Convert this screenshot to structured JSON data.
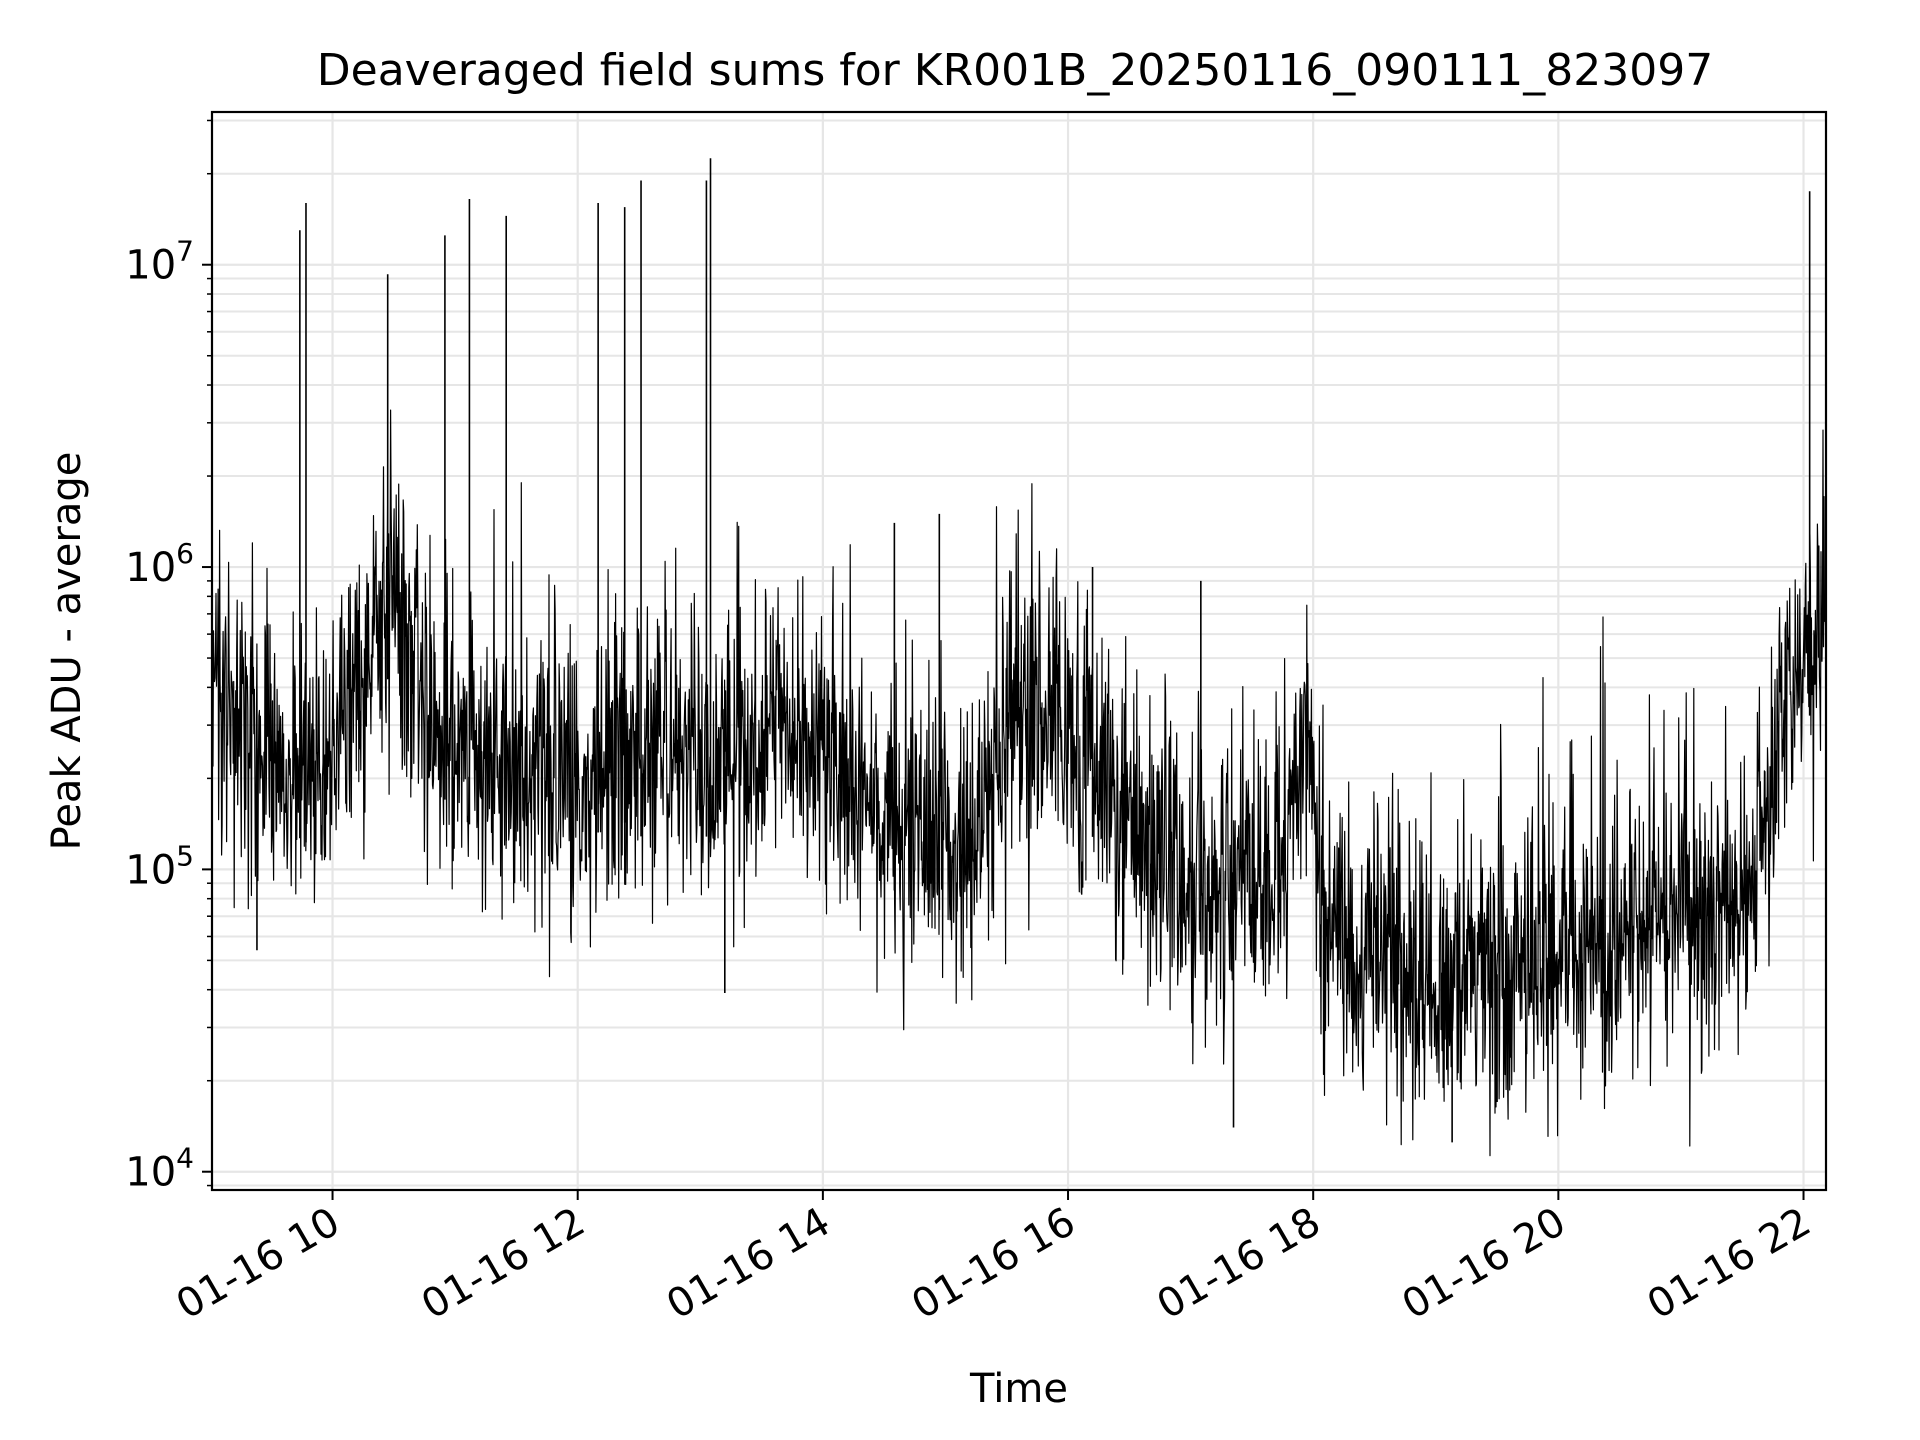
{
  "chart_data": {
    "type": "line",
    "title": "Deaveraged field sums for KR001B_20250116_090111_823097",
    "xlabel": "Time",
    "ylabel": "Peak ADU - average",
    "yscale": "log",
    "ylim": [
      8700,
      32000000
    ],
    "xlim": [
      "2025-01-16 09:01",
      "2025-01-16 22:11"
    ],
    "grid": true,
    "legend": "none",
    "line_color": "#000000",
    "grid_color": "#e6e6e6",
    "x_ticks": [
      {
        "t": "2025-01-16 10:00",
        "label": "01-16 10"
      },
      {
        "t": "2025-01-16 12:00",
        "label": "01-16 12"
      },
      {
        "t": "2025-01-16 14:00",
        "label": "01-16 14"
      },
      {
        "t": "2025-01-16 16:00",
        "label": "01-16 16"
      },
      {
        "t": "2025-01-16 18:00",
        "label": "01-16 18"
      },
      {
        "t": "2025-01-16 20:00",
        "label": "01-16 20"
      },
      {
        "t": "2025-01-16 22:00",
        "label": "01-16 22"
      }
    ],
    "y_ticks": [
      {
        "value": 10000,
        "base": "10",
        "exp": "4"
      },
      {
        "value": 100000,
        "base": "10",
        "exp": "5"
      },
      {
        "value": 1000000,
        "base": "10",
        "exp": "6"
      },
      {
        "value": 10000000,
        "base": "10",
        "exp": "7"
      }
    ],
    "baseline_hours": [
      9.02,
      9.3,
      9.6,
      9.9,
      10.1,
      10.25,
      10.4,
      10.6,
      10.8,
      11.0,
      11.3,
      11.6,
      12.0,
      12.3,
      12.5,
      12.8,
      13.1,
      13.3,
      13.6,
      14.0,
      14.3,
      14.6,
      15.0,
      15.3,
      15.6,
      16.0,
      16.3,
      16.6,
      17.0,
      17.3,
      17.7,
      17.95,
      18.1,
      18.5,
      19.0,
      19.5,
      20.0,
      20.5,
      21.0,
      21.4,
      21.6,
      21.8,
      22.0,
      22.18
    ],
    "baseline_values": [
      450000,
      260000,
      230000,
      190000,
      320000,
      500000,
      750000,
      600000,
      320000,
      260000,
      200000,
      220000,
      180000,
      260000,
      210000,
      300000,
      200000,
      240000,
      320000,
      250000,
      180000,
      140000,
      120000,
      150000,
      350000,
      300000,
      180000,
      130000,
      90000,
      80000,
      110000,
      250000,
      70000,
      50000,
      42000,
      45000,
      55000,
      60000,
      70000,
      80000,
      90000,
      300000,
      500000,
      650000
    ],
    "spikes": [
      {
        "t": "2025-01-16 09:44",
        "value": 13000000
      },
      {
        "t": "2025-01-16 09:47",
        "value": 16000000
      },
      {
        "t": "2025-01-16 10:27",
        "value": 9300000
      },
      {
        "t": "2025-01-16 10:55",
        "value": 12500000
      },
      {
        "t": "2025-01-16 11:07",
        "value": 16500000
      },
      {
        "t": "2025-01-16 11:25",
        "value": 14500000
      },
      {
        "t": "2025-01-16 12:10",
        "value": 16000000
      },
      {
        "t": "2025-01-16 12:23",
        "value": 15500000
      },
      {
        "t": "2025-01-16 12:31",
        "value": 19000000
      },
      {
        "t": "2025-01-16 13:03",
        "value": 19000000
      },
      {
        "t": "2025-01-16 13:05",
        "value": 22500000
      },
      {
        "t": "2025-01-16 22:03",
        "value": 17500000
      },
      {
        "t": "2025-01-16 14:35",
        "value": 1400000
      },
      {
        "t": "2025-01-16 14:57",
        "value": 1500000
      },
      {
        "t": "2025-01-16 16:12",
        "value": 1000000
      },
      {
        "t": "2025-01-16 17:05",
        "value": 900000
      }
    ],
    "dips": [
      {
        "t": "2025-01-16 17:21",
        "value": 14000
      },
      {
        "t": "2025-01-16 19:08",
        "value": 12500
      },
      {
        "t": "2025-01-16 09:23",
        "value": 54000
      },
      {
        "t": "2025-01-16 13:12",
        "value": 39000
      },
      {
        "t": "2025-01-16 19:30",
        "value": 17000
      }
    ]
  }
}
